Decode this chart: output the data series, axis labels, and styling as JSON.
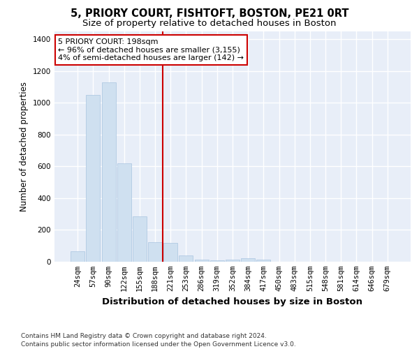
{
  "title_main": "5, PRIORY COURT, FISHTOFT, BOSTON, PE21 0RT",
  "title_sub": "Size of property relative to detached houses in Boston",
  "xlabel": "Distribution of detached houses by size in Boston",
  "ylabel": "Number of detached properties",
  "categories": [
    "24sqm",
    "57sqm",
    "90sqm",
    "122sqm",
    "155sqm",
    "188sqm",
    "221sqm",
    "253sqm",
    "286sqm",
    "319sqm",
    "352sqm",
    "384sqm",
    "417sqm",
    "450sqm",
    "483sqm",
    "515sqm",
    "548sqm",
    "581sqm",
    "614sqm",
    "646sqm",
    "679sqm"
  ],
  "values": [
    65,
    1050,
    1130,
    620,
    285,
    125,
    120,
    40,
    15,
    10,
    15,
    20,
    15,
    0,
    0,
    0,
    0,
    0,
    0,
    0,
    0
  ],
  "bar_color": "#cfe0f0",
  "bar_edge_color": "#a8c4e0",
  "vline_x": 5.5,
  "vline_color": "#cc0000",
  "annotation_text": "5 PRIORY COURT: 198sqm\n← 96% of detached houses are smaller (3,155)\n4% of semi-detached houses are larger (142) →",
  "annotation_box_color": "white",
  "annotation_box_edge_color": "#cc0000",
  "ylim": [
    0,
    1450
  ],
  "yticks": [
    0,
    200,
    400,
    600,
    800,
    1000,
    1200,
    1400
  ],
  "bg_color": "#e8eef8",
  "grid_color": "white",
  "footer": "Contains HM Land Registry data © Crown copyright and database right 2024.\nContains public sector information licensed under the Open Government Licence v3.0.",
  "title_fontsize": 10.5,
  "subtitle_fontsize": 9.5,
  "xlabel_fontsize": 9.5,
  "ylabel_fontsize": 8.5,
  "tick_fontsize": 7.5,
  "annot_fontsize": 8,
  "footer_fontsize": 6.5
}
